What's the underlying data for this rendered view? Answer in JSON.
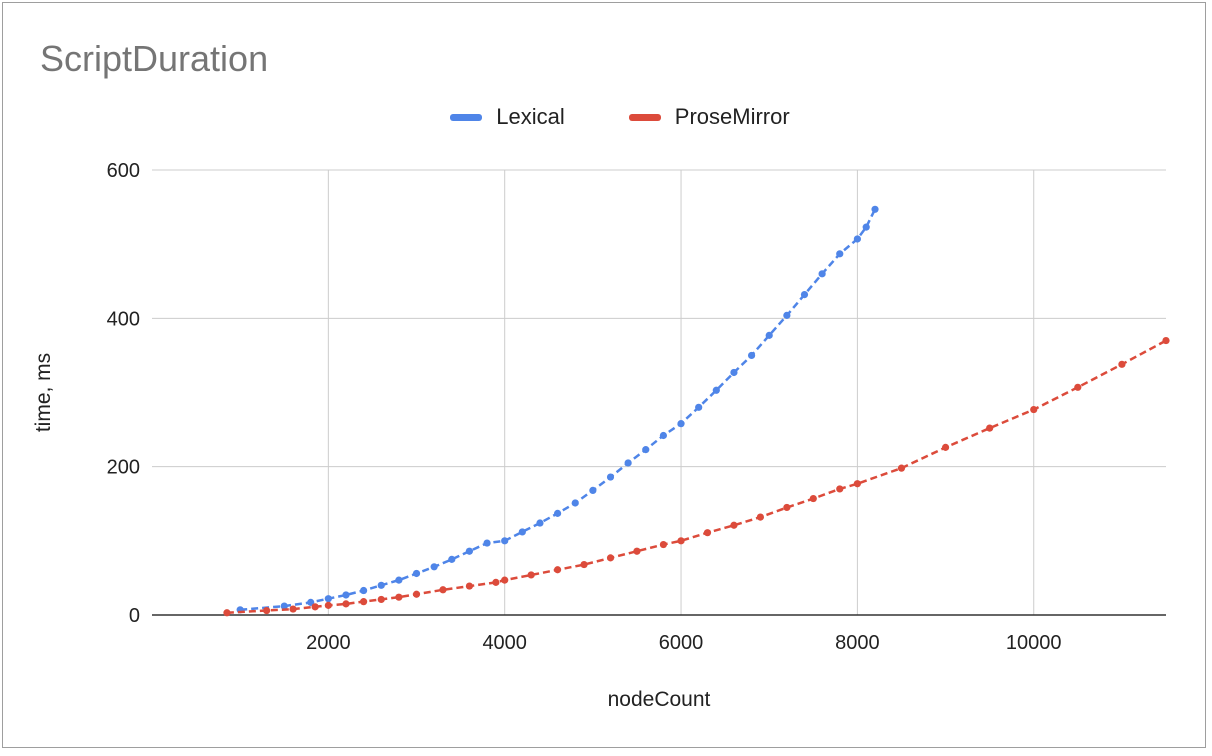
{
  "chart_data": {
    "type": "scatter",
    "title": "ScriptDuration",
    "xlabel": "nodeCount",
    "ylabel": "time, ms",
    "xlim": [
      0,
      11500
    ],
    "ylim": [
      0,
      600
    ],
    "xticks": [
      2000,
      4000,
      6000,
      8000,
      10000
    ],
    "xtick_labels": [
      "2000",
      "4000",
      "6000",
      "8000",
      "10000"
    ],
    "yticks": [
      0,
      200,
      400,
      600
    ],
    "ytick_labels": [
      "0",
      "200",
      "400",
      "600"
    ],
    "grid": true,
    "legend": "top",
    "series": [
      {
        "name": "Lexical",
        "color": "#4f85e8",
        "marker": "dot",
        "trendline": "dashed",
        "x": [
          1000,
          1500,
          1800,
          2000,
          2200,
          2400,
          2600,
          2800,
          3000,
          3200,
          3400,
          3600,
          3800,
          4000,
          4200,
          4400,
          4600,
          4800,
          5000,
          5200,
          5400,
          5600,
          5800,
          6000,
          6200,
          6400,
          6600,
          6800,
          7000,
          7200,
          7400,
          7600,
          7800,
          8000,
          8100,
          8200
        ],
        "y": [
          7,
          12,
          17,
          22,
          27,
          33,
          40,
          47,
          56,
          65,
          75,
          86,
          97,
          100,
          112,
          124,
          137,
          151,
          168,
          186,
          205,
          223,
          242,
          258,
          280,
          303,
          327,
          350,
          377,
          404,
          432,
          460,
          487,
          507,
          523,
          547
        ]
      },
      {
        "name": "ProseMirror",
        "color": "#dc4b3b",
        "marker": "dot",
        "trendline": "dashed",
        "x": [
          850,
          1300,
          1600,
          1850,
          2000,
          2200,
          2400,
          2600,
          2800,
          3000,
          3300,
          3600,
          3900,
          4000,
          4300,
          4600,
          4900,
          5200,
          5500,
          5800,
          6000,
          6300,
          6600,
          6900,
          7200,
          7500,
          7800,
          8000,
          8500,
          9000,
          9500,
          10000,
          10500,
          11000,
          11500
        ],
        "y": [
          3,
          6,
          8,
          11,
          13,
          15,
          18,
          21,
          24,
          28,
          34,
          39,
          44,
          47,
          54,
          61,
          68,
          77,
          86,
          95,
          100,
          111,
          121,
          132,
          145,
          157,
          170,
          177,
          198,
          226,
          252,
          277,
          307,
          338,
          370
        ]
      }
    ]
  }
}
